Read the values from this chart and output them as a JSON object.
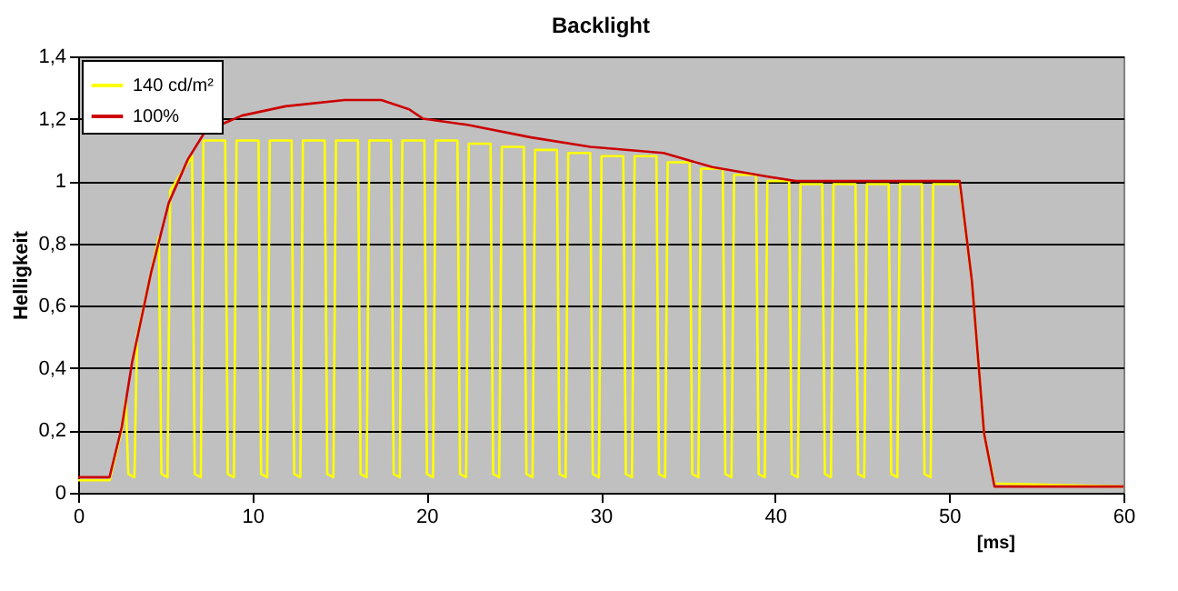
{
  "chart_data": {
    "type": "line",
    "title": "Backlight",
    "xlabel": "[ms]",
    "ylabel": "Helligkeit",
    "xlim": [
      0,
      60
    ],
    "xticks": [
      0,
      10,
      20,
      30,
      40,
      50,
      60
    ],
    "ylim": [
      0,
      1.4
    ],
    "yticks": [
      0,
      {
        "value": 0.2,
        "label": "0,2"
      },
      {
        "value": 0.4,
        "label": "0,4"
      },
      {
        "value": 0.6,
        "label": "0,6"
      },
      {
        "value": 0.8,
        "label": "0,8"
      },
      1,
      {
        "value": 1.2,
        "label": "1,2"
      },
      {
        "value": 1.4,
        "label": "1,4"
      }
    ],
    "grid": "y",
    "legend": "top left",
    "marker": "none",
    "line_style": "solid",
    "series": [
      {
        "name": "140 cd/m²",
        "color": "#ffff00",
        "x": [
          0,
          1.8,
          2.5,
          2.73,
          2.88,
          3.23,
          3.38,
          4.63,
          4.78,
          5.13,
          5.28,
          6.54,
          6.69,
          7.04,
          7.19,
          8.44,
          8.59,
          8.94,
          9.09,
          10.35,
          10.5,
          10.85,
          11.0,
          12.25,
          12.4,
          12.75,
          12.9,
          14.15,
          14.3,
          14.65,
          14.8,
          16.06,
          16.21,
          16.56,
          16.71,
          17.96,
          18.11,
          18.46,
          18.61,
          19.87,
          20.02,
          20.37,
          20.52,
          21.77,
          21.92,
          22.27,
          22.42,
          23.67,
          23.82,
          24.17,
          24.32,
          25.58,
          25.73,
          26.08,
          26.23,
          27.48,
          27.63,
          27.98,
          28.13,
          29.39,
          29.54,
          29.89,
          30.04,
          31.29,
          31.44,
          31.79,
          31.94,
          33.19,
          33.34,
          33.69,
          33.84,
          35.1,
          35.25,
          35.6,
          35.75,
          37.0,
          37.15,
          37.5,
          37.65,
          38.91,
          39.06,
          39.41,
          39.56,
          40.81,
          40.96,
          41.31,
          41.46,
          42.71,
          42.86,
          43.21,
          43.36,
          44.62,
          44.77,
          45.12,
          45.27,
          46.52,
          46.67,
          47.02,
          47.17,
          48.43,
          48.58,
          48.93,
          49.08,
          50.6,
          51.3,
          52.0,
          52.6,
          60
        ],
        "values": [
          0.04,
          0.04,
          0.2,
          0.3,
          0.06,
          0.05,
          0.5,
          0.82,
          0.06,
          0.05,
          0.97,
          1.08,
          0.06,
          0.05,
          1.13,
          1.13,
          0.06,
          0.05,
          1.13,
          1.13,
          0.06,
          0.05,
          1.13,
          1.13,
          0.06,
          0.05,
          1.13,
          1.13,
          0.06,
          0.05,
          1.13,
          1.13,
          0.06,
          0.05,
          1.13,
          1.13,
          0.06,
          0.05,
          1.13,
          1.13,
          0.06,
          0.05,
          1.13,
          1.13,
          0.06,
          0.05,
          1.12,
          1.12,
          0.06,
          0.05,
          1.11,
          1.11,
          0.06,
          0.05,
          1.1,
          1.1,
          0.06,
          0.05,
          1.09,
          1.09,
          0.06,
          0.05,
          1.08,
          1.08,
          0.06,
          0.05,
          1.08,
          1.08,
          0.06,
          0.05,
          1.06,
          1.06,
          0.06,
          0.05,
          1.04,
          1.04,
          0.06,
          0.05,
          1.02,
          1.02,
          0.06,
          0.05,
          1.0,
          1.0,
          0.06,
          0.05,
          0.99,
          0.99,
          0.06,
          0.05,
          0.99,
          0.99,
          0.06,
          0.05,
          0.99,
          0.99,
          0.06,
          0.05,
          0.99,
          0.99,
          0.06,
          0.05,
          0.99,
          0.99,
          0.68,
          0.19,
          0.03,
          0.02
        ]
      },
      {
        "name": "100%",
        "color": "#cc0000",
        "x": [
          0,
          1.8,
          2.5,
          3.1,
          4.2,
          5.2,
          6.3,
          7.3,
          9.4,
          11.9,
          15.3,
          17.4,
          19,
          19.8,
          22.4,
          26,
          29.4,
          33.6,
          36.4,
          39.5,
          41.2,
          50.6,
          51.3,
          52,
          52.6,
          60
        ],
        "values": [
          0.05,
          0.05,
          0.21,
          0.42,
          0.71,
          0.93,
          1.07,
          1.16,
          1.21,
          1.24,
          1.26,
          1.26,
          1.23,
          1.2,
          1.18,
          1.14,
          1.11,
          1.09,
          1.045,
          1.015,
          1.0,
          1.0,
          0.68,
          0.19,
          0.02,
          0.02
        ]
      }
    ]
  }
}
